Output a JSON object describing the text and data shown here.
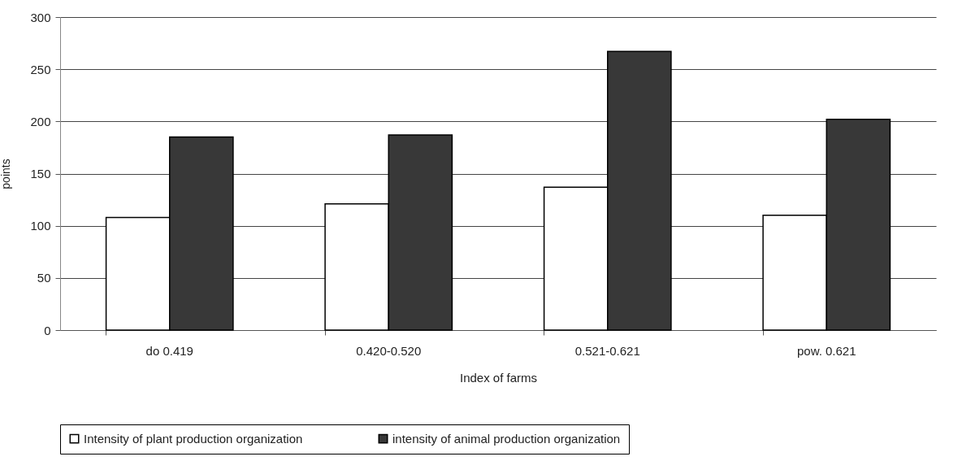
{
  "chart_data": {
    "type": "bar",
    "xlabel": "Index of  farms",
    "ylabel": "points",
    "categories": [
      "do 0.419",
      "0.420-0.520",
      "0.521-0.621",
      "pow. 0.621"
    ],
    "series": [
      {
        "name": "Intensity of plant production organization",
        "color": "#ffffff",
        "values": [
          108,
          121,
          137,
          110
        ]
      },
      {
        "name": "intensity of animal production organization",
        "color": "#383838",
        "values": [
          185,
          187,
          267,
          202
        ]
      }
    ],
    "ylim": [
      0,
      300
    ],
    "yticks": [
      0,
      50,
      100,
      150,
      200,
      250,
      300
    ],
    "grid": "y",
    "legend": "bottom"
  }
}
